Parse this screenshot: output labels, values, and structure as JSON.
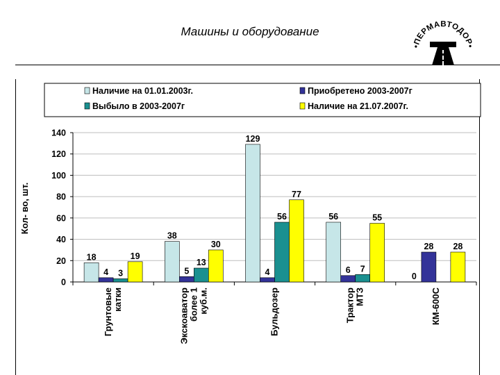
{
  "page": {
    "title": "Машины и оборудование"
  },
  "logo": {
    "text": "•ПЕРМАВТОДОР•"
  },
  "chart_data": {
    "type": "bar",
    "title": "",
    "ylabel": "Кол- во, шт.",
    "xlabel": "",
    "ylim": [
      0,
      140
    ],
    "yticks": [
      0,
      20,
      40,
      60,
      80,
      100,
      120,
      140
    ],
    "categories": [
      [
        "Грунтовые",
        "катки"
      ],
      [
        "Экскоаватор",
        "более 1",
        "куб.м."
      ],
      [
        "Бульдозер"
      ],
      [
        "Трактор",
        "МТЗ"
      ],
      [
        "КМ-600С"
      ]
    ],
    "series": [
      {
        "name": "Наличие на 01.01.2003г.",
        "color": "#c6e6e8",
        "values": [
          18,
          38,
          129,
          56,
          0
        ]
      },
      {
        "name": "Приобретено 2003-2007г",
        "color": "#333399",
        "values": [
          4,
          5,
          4,
          6,
          28
        ]
      },
      {
        "name": "Выбыло в 2003-2007г",
        "color": "#1a9090",
        "values": [
          3,
          13,
          56,
          7,
          0
        ]
      },
      {
        "name": "Наличие на 21.07.2007г.",
        "color": "#ffff00",
        "values": [
          19,
          30,
          77,
          55,
          28
        ]
      }
    ],
    "data_labels": [
      [
        "18",
        "4",
        "3",
        "19"
      ],
      [
        "38",
        "5",
        "13",
        "30"
      ],
      [
        "129",
        "4",
        "56",
        "77"
      ],
      [
        "56",
        "6",
        "7",
        "55"
      ],
      [
        "0",
        "28",
        "",
        "28"
      ]
    ],
    "legend_position": "top",
    "grid": true
  }
}
